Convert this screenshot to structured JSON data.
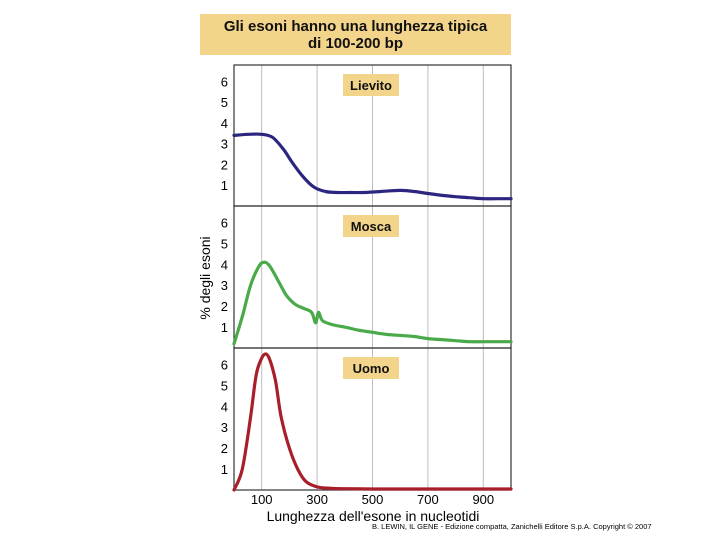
{
  "title_lines": [
    "Gli esoni hanno una lunghezza tipica",
    "di 100-200 bp"
  ],
  "footer": "B. LEWIN, IL GENE - Edizione compatta, Zanichelli Editore S.p.A. Copyright © 2007",
  "chart_data": {
    "type": "line",
    "title": "Gli esoni hanno una lunghezza tipica di 100-200 bp",
    "xlabel": "Lunghezza dell'esone in nucleotidi",
    "ylabel": "% degli esoni",
    "xlim": [
      0,
      1000
    ],
    "ylim": [
      0,
      6.5
    ],
    "xticks": [
      100,
      300,
      500,
      700,
      900
    ],
    "yticks": [
      1,
      2,
      3,
      4,
      5,
      6
    ],
    "grid": "vertical",
    "panels": [
      {
        "label": "Lievito",
        "color": "#2b2680",
        "x": [
          0,
          50,
          100,
          140,
          180,
          210,
          250,
          290,
          330,
          370,
          420,
          470,
          530,
          600,
          650,
          700,
          760,
          800,
          850,
          900,
          950,
          1000
        ],
        "y": [
          3.4,
          3.45,
          3.45,
          3.3,
          2.7,
          2.1,
          1.4,
          0.9,
          0.7,
          0.65,
          0.65,
          0.65,
          0.7,
          0.75,
          0.7,
          0.6,
          0.5,
          0.45,
          0.4,
          0.35,
          0.35,
          0.35
        ]
      },
      {
        "label": "Mosca",
        "color": "#4aaa4a",
        "x": [
          0,
          30,
          60,
          90,
          110,
          130,
          160,
          190,
          220,
          250,
          280,
          295,
          305,
          320,
          360,
          400,
          450,
          500,
          550,
          600,
          650,
          700,
          750,
          800,
          850,
          900,
          950,
          1000
        ],
        "y": [
          0.2,
          1.5,
          3.0,
          3.9,
          4.1,
          3.9,
          3.2,
          2.5,
          2.1,
          1.9,
          1.7,
          1.2,
          1.7,
          1.3,
          1.1,
          1.0,
          0.85,
          0.75,
          0.65,
          0.6,
          0.55,
          0.45,
          0.4,
          0.35,
          0.3,
          0.3,
          0.3,
          0.3
        ]
      },
      {
        "label": "Uomo",
        "color": "#a81e2a",
        "x": [
          0,
          30,
          60,
          80,
          100,
          115,
          130,
          150,
          170,
          200,
          230,
          260,
          300,
          350,
          400,
          500,
          600,
          700,
          800,
          900,
          1000
        ],
        "y": [
          0.0,
          1.0,
          3.5,
          5.5,
          6.3,
          6.5,
          6.2,
          5.2,
          3.5,
          2.0,
          1.0,
          0.4,
          0.15,
          0.08,
          0.06,
          0.05,
          0.05,
          0.05,
          0.05,
          0.05,
          0.05
        ]
      }
    ]
  }
}
